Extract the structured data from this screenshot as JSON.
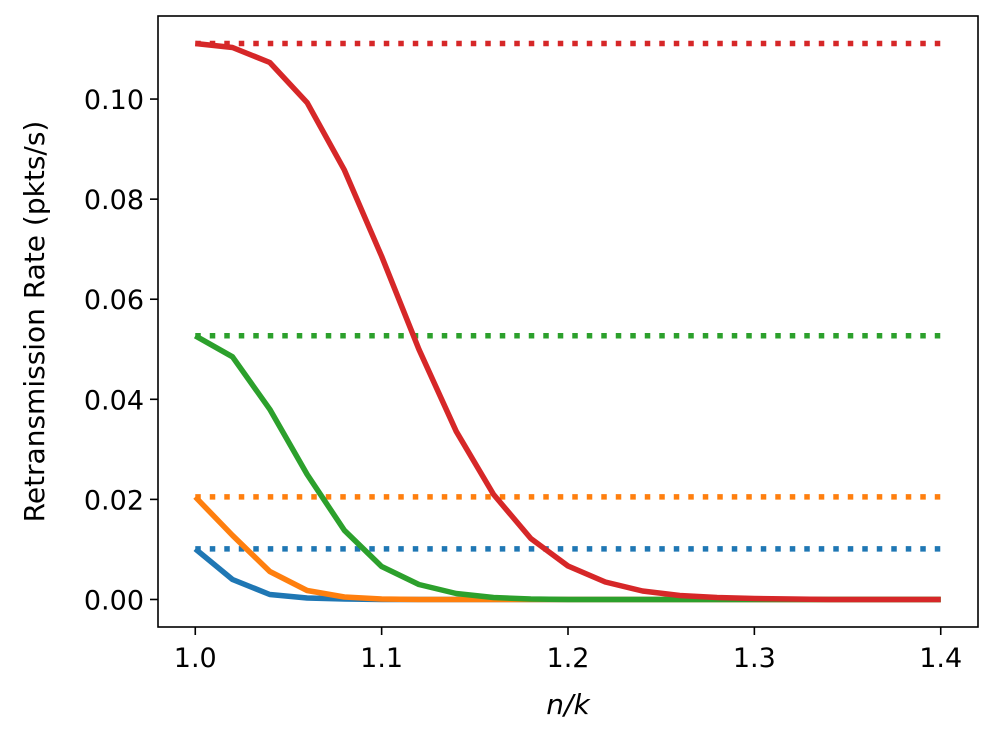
{
  "chart_data": {
    "type": "line",
    "xlabel": "n/k",
    "ylabel": "Retransmission Rate (pkts/s)",
    "xlim": [
      0.98,
      1.42
    ],
    "ylim": [
      -0.0055,
      0.1166
    ],
    "xticks": [
      1.0,
      1.1,
      1.2,
      1.3,
      1.4
    ],
    "xtick_labels": [
      "1.0",
      "1.1",
      "1.2",
      "1.3",
      "1.4"
    ],
    "yticks": [
      0.0,
      0.02,
      0.04,
      0.06,
      0.08,
      0.1
    ],
    "ytick_labels": [
      "0.00",
      "0.02",
      "0.04",
      "0.06",
      "0.08",
      "0.10"
    ],
    "grid": false,
    "legend": false,
    "x": [
      1.0,
      1.02,
      1.04,
      1.06,
      1.08,
      1.1,
      1.12,
      1.14,
      1.16,
      1.18,
      1.2,
      1.22,
      1.24,
      1.26,
      1.28,
      1.3,
      1.32,
      1.34,
      1.36,
      1.38,
      1.4
    ],
    "series": [
      {
        "color": "#1f77b4",
        "values": [
          0.0101,
          0.004,
          0.001,
          0.0003,
          0.0001,
          0.0,
          0.0,
          0.0,
          0.0,
          0.0,
          0.0,
          0.0,
          0.0,
          0.0,
          0.0,
          0.0,
          0.0,
          0.0,
          0.0,
          0.0,
          0.0
        ]
      },
      {
        "color": "#ff7f0e",
        "values": [
          0.0205,
          0.0128,
          0.0056,
          0.0018,
          0.0005,
          0.0001,
          0.0,
          0.0,
          0.0,
          0.0,
          0.0,
          0.0,
          0.0,
          0.0,
          0.0,
          0.0,
          0.0,
          0.0,
          0.0,
          0.0,
          0.0
        ]
      },
      {
        "color": "#2ca02c",
        "values": [
          0.0527,
          0.0485,
          0.038,
          0.025,
          0.0138,
          0.0066,
          0.003,
          0.0012,
          0.0004,
          0.0001,
          0.0,
          0.0,
          0.0,
          0.0,
          0.0,
          0.0,
          0.0,
          0.0,
          0.0,
          0.0,
          0.0
        ]
      },
      {
        "color": "#d62728",
        "values": [
          0.1111,
          0.1103,
          0.1073,
          0.0993,
          0.0858,
          0.0686,
          0.05,
          0.0336,
          0.021,
          0.0122,
          0.0067,
          0.0035,
          0.0017,
          0.0008,
          0.0004,
          0.0002,
          0.0001,
          0.0,
          0.0,
          0.0,
          0.0
        ]
      }
    ],
    "reference_lines": [
      {
        "color": "#1f77b4",
        "y": 0.0101,
        "style": "dotted"
      },
      {
        "color": "#ff7f0e",
        "y": 0.0205,
        "style": "dotted"
      },
      {
        "color": "#2ca02c",
        "y": 0.0527,
        "style": "dotted"
      },
      {
        "color": "#d62728",
        "y": 0.1111,
        "style": "dotted"
      }
    ]
  }
}
